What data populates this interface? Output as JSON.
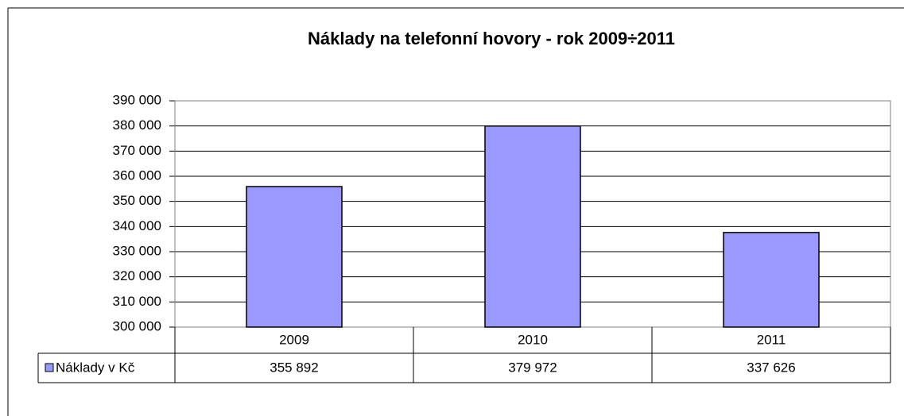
{
  "chart_data": {
    "type": "bar",
    "title": "Náklady na telefonní hovory - rok 2009÷2011",
    "categories": [
      "2009",
      "2010",
      "2011"
    ],
    "series": [
      {
        "name": "Náklady v Kč",
        "color": "#9999ff",
        "values": [
          355892,
          379972,
          337626
        ],
        "value_labels": [
          "355 892",
          "379 972",
          "337 626"
        ]
      }
    ],
    "ylim": [
      300000,
      390000
    ],
    "yticks": [
      {
        "value": 300000,
        "label": "300 000"
      },
      {
        "value": 310000,
        "label": "310 000"
      },
      {
        "value": 320000,
        "label": "320 000"
      },
      {
        "value": 330000,
        "label": "330 000"
      },
      {
        "value": 340000,
        "label": "340 000"
      },
      {
        "value": 350000,
        "label": "350 000"
      },
      {
        "value": 360000,
        "label": "360 000"
      },
      {
        "value": 370000,
        "label": "370 000"
      },
      {
        "value": 380000,
        "label": "380 000"
      },
      {
        "value": 390000,
        "label": "390 000"
      }
    ],
    "grid": true
  }
}
